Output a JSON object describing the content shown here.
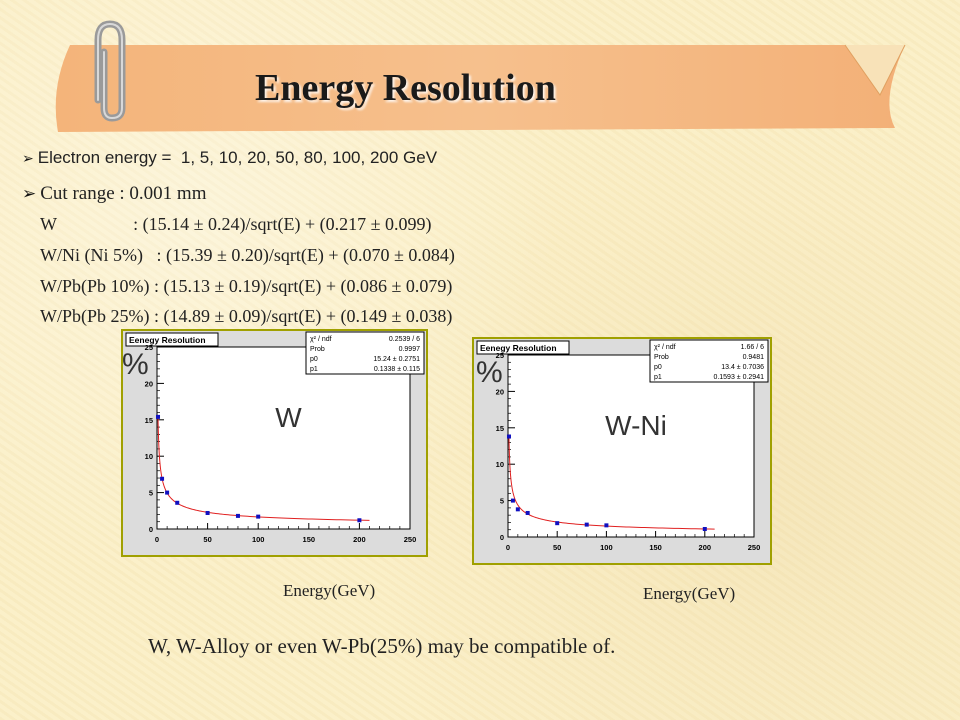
{
  "title": "Energy Resolution",
  "bullets": {
    "energy_prefix": "Electron",
    "energy_text": " energy =  1, 5, 10, 20, 50, 80, 100, 200 GeV",
    "cut_range": "Cut range : 0.001 mm"
  },
  "fits": [
    "W                 : (15.14 ± 0.24)/sqrt(E) + (0.217 ± 0.099)",
    "W/Ni (Ni 5%)   : (15.39 ± 0.20)/sqrt(E) + (0.070 ± 0.084)",
    "W/Pb(Pb 10%) : (15.13 ± 0.19)/sqrt(E) + (0.086 ± 0.079)",
    "W/Pb(Pb 25%) : (14.89 ± 0.09)/sqrt(E) + (0.149 ± 0.038)"
  ],
  "conclusion": "W, W-Alloy or even W-Pb(25%) may be compatible of.",
  "colors": {
    "fit_line": "#e02020",
    "marker": "#1010c0",
    "frame_border": "#a0a000",
    "frame_bg": "#dcdcdc"
  },
  "chart_data": [
    {
      "type": "scatter",
      "title": "Eenegy Resolution",
      "label": "W",
      "ylabel": "%",
      "xlabel": "Energy(GeV)",
      "xlim": [
        0,
        250
      ],
      "ylim": [
        0,
        25
      ],
      "xticks": [
        0,
        50,
        100,
        150,
        200,
        250
      ],
      "yticks": [
        0,
        5,
        10,
        15,
        20,
        25
      ],
      "x": [
        1,
        5,
        10,
        20,
        50,
        80,
        100,
        200
      ],
      "y": [
        15.4,
        6.9,
        5.0,
        3.6,
        2.2,
        1.8,
        1.7,
        1.2
      ],
      "fit": {
        "p0": 15.24,
        "p1": 0.1338,
        "xrange": [
          1,
          210
        ]
      },
      "stats": [
        [
          "χ² / ndf",
          "0.2539 / 6"
        ],
        [
          "Prob",
          "0.9997"
        ],
        [
          "p0",
          "15.24 ± 0.2751"
        ],
        [
          "p1",
          "0.1338 ± 0.115"
        ]
      ]
    },
    {
      "type": "scatter",
      "title": "Eenegy Resolution",
      "label": "W-Ni",
      "ylabel": "%",
      "xlabel": "Energy(GeV)",
      "xlim": [
        0,
        250
      ],
      "ylim": [
        0,
        25
      ],
      "xticks": [
        0,
        50,
        100,
        150,
        200,
        250
      ],
      "yticks": [
        0,
        5,
        10,
        15,
        20,
        25
      ],
      "x": [
        1,
        5,
        10,
        20,
        50,
        80,
        100,
        200
      ],
      "y": [
        13.8,
        5.0,
        3.8,
        3.3,
        1.9,
        1.7,
        1.6,
        1.1
      ],
      "fit": {
        "p0": 13.4,
        "p1": 0.1593,
        "xrange": [
          1,
          210
        ]
      },
      "stats": [
        [
          "χ² / ndf",
          "1.66 / 6"
        ],
        [
          "Prob",
          "0.9481"
        ],
        [
          "p0",
          "13.4 ± 0.7036"
        ],
        [
          "p1",
          "0.1593 ± 0.2941"
        ]
      ]
    }
  ]
}
